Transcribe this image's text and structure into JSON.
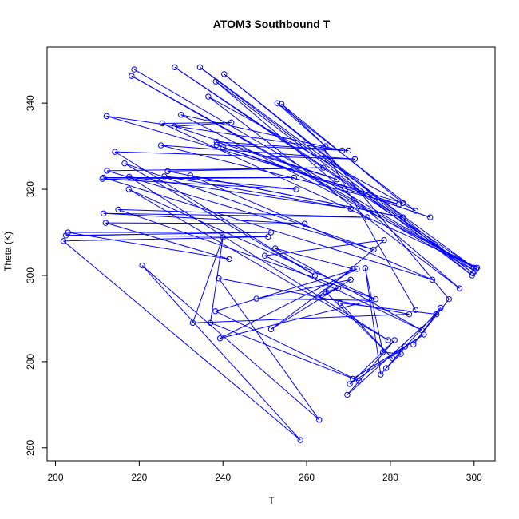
{
  "chart_data": {
    "type": "scatter",
    "title": "ATOM3 Southbound T",
    "xlabel": "T",
    "ylabel": "Theta (K)",
    "xlim": [
      198,
      305
    ],
    "ylim": [
      257,
      353
    ],
    "x_ticks": [
      "200",
      "220",
      "240",
      "260",
      "280",
      "300"
    ],
    "y_ticks": [
      "260",
      "280",
      "300",
      "320",
      "340"
    ],
    "grid": false,
    "legend": "none",
    "color": "#0000ff",
    "marker": "open-circle",
    "connected": true,
    "series": [
      {
        "values": [
          [
            218.8,
            347.8
          ],
          [
            300.5,
            301.5
          ],
          [
            218.2,
            346.3
          ],
          [
            300.2,
            301.0
          ],
          [
            228.5,
            348.3
          ],
          [
            300.0,
            301.8
          ],
          [
            234.5,
            348.3
          ],
          [
            299.7,
            300.5
          ],
          [
            240.3,
            346.7
          ],
          [
            299.5,
            300.0
          ],
          [
            238.3,
            345.0
          ],
          [
            296.5,
            297.0
          ],
          [
            236.5,
            341.5
          ],
          [
            286.0,
            315.0
          ],
          [
            253.0,
            340.0
          ],
          [
            264.5,
            330.0
          ],
          [
            254.0,
            339.8
          ],
          [
            283.0,
            316.8
          ],
          [
            212.2,
            337.0
          ],
          [
            268.5,
            329.0
          ],
          [
            230.0,
            337.3
          ],
          [
            300.7,
            301.8
          ],
          [
            225.5,
            335.3
          ],
          [
            242.0,
            335.5
          ],
          [
            228.5,
            334.6
          ],
          [
            267.2,
            322.3
          ],
          [
            238.5,
            331.0
          ],
          [
            270.0,
            329.0
          ],
          [
            238.5,
            330.3
          ],
          [
            289.5,
            313.5
          ],
          [
            240.0,
            329.8
          ],
          [
            282.0,
            316.5
          ],
          [
            225.2,
            330.2
          ],
          [
            271.5,
            327.0
          ],
          [
            214.2,
            328.7
          ],
          [
            262.0,
            300.0
          ],
          [
            216.5,
            326.0
          ],
          [
            276.0,
            306.0
          ],
          [
            212.3,
            324.3
          ],
          [
            264.0,
            325.0
          ],
          [
            226.8,
            324.2
          ],
          [
            283.0,
            313.5
          ],
          [
            232.2,
            323.2
          ],
          [
            290.0,
            299.0
          ],
          [
            211.5,
            322.7
          ],
          [
            257.0,
            322.7
          ],
          [
            211.2,
            322.4
          ],
          [
            257.5,
            320.0
          ],
          [
            226.0,
            323.0
          ],
          [
            270.5,
            315.5
          ],
          [
            217.6,
            322.9
          ],
          [
            279.5,
            285.0
          ],
          [
            217.5,
            320.0
          ],
          [
            276.5,
            294.5
          ],
          [
            215.0,
            315.3
          ],
          [
            274.5,
            313.5
          ],
          [
            211.5,
            314.4
          ],
          [
            259.5,
            312.0
          ],
          [
            212.0,
            312.2
          ],
          [
            241.5,
            303.8
          ],
          [
            203.0,
            310.0
          ],
          [
            251.5,
            310.0
          ],
          [
            202.5,
            309.3
          ],
          [
            250.8,
            309.0
          ],
          [
            201.9,
            308.0
          ],
          [
            258.5,
            261.8
          ],
          [
            220.7,
            302.3
          ],
          [
            263.0,
            266.5
          ],
          [
            239.0,
            299.3
          ],
          [
            284.5,
            291.0
          ],
          [
            232.8,
            289.0
          ],
          [
            240.0,
            308.9
          ],
          [
            237.0,
            289.0
          ],
          [
            272.5,
            275.5
          ],
          [
            238.2,
            291.7
          ],
          [
            272.0,
            301.5
          ],
          [
            239.3,
            285.4
          ],
          [
            275.5,
            294.2
          ],
          [
            248.0,
            294.6
          ],
          [
            270.5,
            299.0
          ],
          [
            251.5,
            287.5
          ],
          [
            271.0,
            301.5
          ],
          [
            252.5,
            306.3
          ],
          [
            287.5,
            287.3
          ],
          [
            250.0,
            304.6
          ],
          [
            278.5,
            308.2
          ],
          [
            262.8,
            295.0
          ],
          [
            267.5,
            297.0
          ],
          [
            264.5,
            296.2
          ],
          [
            280.5,
            280.8
          ],
          [
            268.0,
            293.6
          ],
          [
            291.0,
            291.0
          ],
          [
            269.7,
            272.3
          ],
          [
            281.0,
            285.0
          ],
          [
            270.3,
            274.8
          ],
          [
            288.0,
            286.3
          ],
          [
            271.0,
            276.0
          ],
          [
            283.5,
            283.5
          ],
          [
            277.7,
            277.0
          ],
          [
            274.0,
            301.7
          ],
          [
            278.2,
            282.2
          ],
          [
            282.5,
            281.8
          ],
          [
            279.0,
            278.5
          ],
          [
            292.0,
            292.5
          ],
          [
            285.5,
            284.0
          ],
          [
            294.0,
            294.5
          ],
          [
            264.0,
            329.5
          ],
          [
            286.0,
            292.0
          ]
        ]
      }
    ]
  }
}
